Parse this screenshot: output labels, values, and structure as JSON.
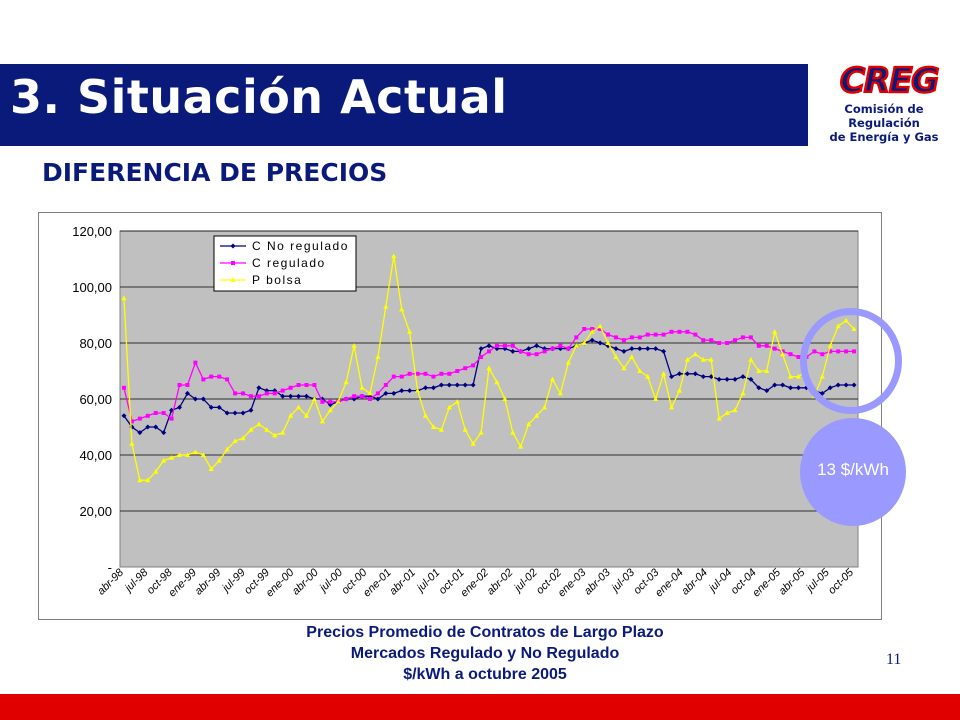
{
  "header": {
    "title": "3. Situación Actual",
    "subtitle": "DIFERENCIA DE PRECIOS"
  },
  "logo": {
    "acronym": "CREG",
    "line1": "Comisión de Regulación",
    "line2": "de Energía y Gas"
  },
  "caption": {
    "line1": "Precios Promedio de Contratos de Largo Plazo",
    "line2": "Mercados Regulado y No Regulado",
    "line3": "$/kWh a octubre 2005"
  },
  "annotation": "13 $/kWh",
  "page_number": "11",
  "colors": {
    "title_bar": "#0a1a7a",
    "bottom_bar": "#e00000",
    "accent": "#9999ff",
    "plot_bg": "#c0c0c0"
  },
  "chart_data": {
    "type": "line",
    "ylim": [
      0,
      120
    ],
    "yticks": [
      "-",
      "20,00",
      "40,00",
      "60,00",
      "80,00",
      "100,00",
      "120,00"
    ],
    "x_tick_labels": [
      "abr-98",
      "jul-98",
      "oct-98",
      "ene-99",
      "abr-99",
      "jul-99",
      "oct-99",
      "ene-00",
      "abr-00",
      "jul-00",
      "oct-00",
      "ene-01",
      "abr-01",
      "jul-01",
      "oct-01",
      "ene-02",
      "abr-02",
      "jul-02",
      "oct-02",
      "ene-03",
      "abr-03",
      "jul-03",
      "oct-03",
      "ene-04",
      "abr-04",
      "jul-04",
      "oct-04",
      "ene-05",
      "abr-05",
      "jul-05",
      "oct-05"
    ],
    "legend_position": "top-left",
    "grid": true,
    "series": [
      {
        "name": "C No regulado",
        "color": "#000080",
        "marker": "diamond",
        "values": [
          54,
          50,
          48,
          50,
          50,
          48,
          56,
          57,
          62,
          60,
          60,
          57,
          57,
          55,
          55,
          55,
          56,
          64,
          63,
          63,
          61,
          61,
          61,
          61,
          60,
          60,
          58,
          59,
          60,
          60,
          61,
          61,
          60,
          62,
          62,
          63,
          63,
          63,
          64,
          64,
          65,
          65,
          65,
          65,
          65,
          78,
          79,
          78,
          78,
          77,
          77,
          78,
          79,
          78,
          78,
          78,
          78,
          79,
          80,
          81,
          80,
          79,
          78,
          77,
          78,
          78,
          78,
          78,
          77,
          68,
          69,
          69,
          69,
          68,
          68,
          67,
          67,
          67,
          68,
          67,
          64,
          63,
          65,
          65,
          64,
          64,
          64,
          63,
          62,
          64,
          65,
          65,
          65
        ]
      },
      {
        "name": "C regulado",
        "color": "#ff00ff",
        "marker": "square",
        "values": [
          64,
          52,
          53,
          54,
          55,
          55,
          53,
          65,
          65,
          73,
          67,
          68,
          68,
          67,
          62,
          62,
          61,
          61,
          62,
          62,
          63,
          64,
          65,
          65,
          65,
          59,
          59,
          59,
          60,
          61,
          61,
          60,
          62,
          65,
          68,
          68,
          69,
          69,
          69,
          68,
          69,
          69,
          70,
          71,
          72,
          75,
          77,
          79,
          79,
          79,
          77,
          76,
          76,
          77,
          78,
          79,
          78,
          82,
          85,
          85,
          85,
          83,
          82,
          81,
          82,
          82,
          83,
          83,
          83,
          84,
          84,
          84,
          83,
          81,
          81,
          80,
          80,
          81,
          82,
          82,
          79,
          79,
          78,
          77,
          76,
          75,
          75,
          77,
          76,
          77,
          77,
          77,
          77
        ]
      },
      {
        "name": "P bolsa",
        "color": "#ffff00",
        "marker": "triangle",
        "values": [
          96,
          44,
          31,
          31,
          34,
          38,
          39,
          40,
          40,
          41,
          40,
          35,
          38,
          42,
          45,
          46,
          49,
          51,
          49,
          47,
          48,
          54,
          57,
          54,
          60,
          52,
          56,
          59,
          66,
          79,
          64,
          62,
          75,
          93,
          111,
          92,
          84,
          63,
          54,
          50,
          49,
          57,
          59,
          49,
          44,
          48,
          71,
          66,
          60,
          48,
          43,
          51,
          54,
          57,
          67,
          62,
          73,
          79,
          80,
          84,
          86,
          80,
          75,
          71,
          75,
          70,
          68,
          60,
          69,
          57,
          63,
          74,
          76,
          74,
          74,
          53,
          55,
          56,
          62,
          74,
          70,
          70,
          84,
          76,
          68,
          68,
          70,
          61,
          68,
          79,
          86,
          88,
          85
        ]
      }
    ]
  }
}
